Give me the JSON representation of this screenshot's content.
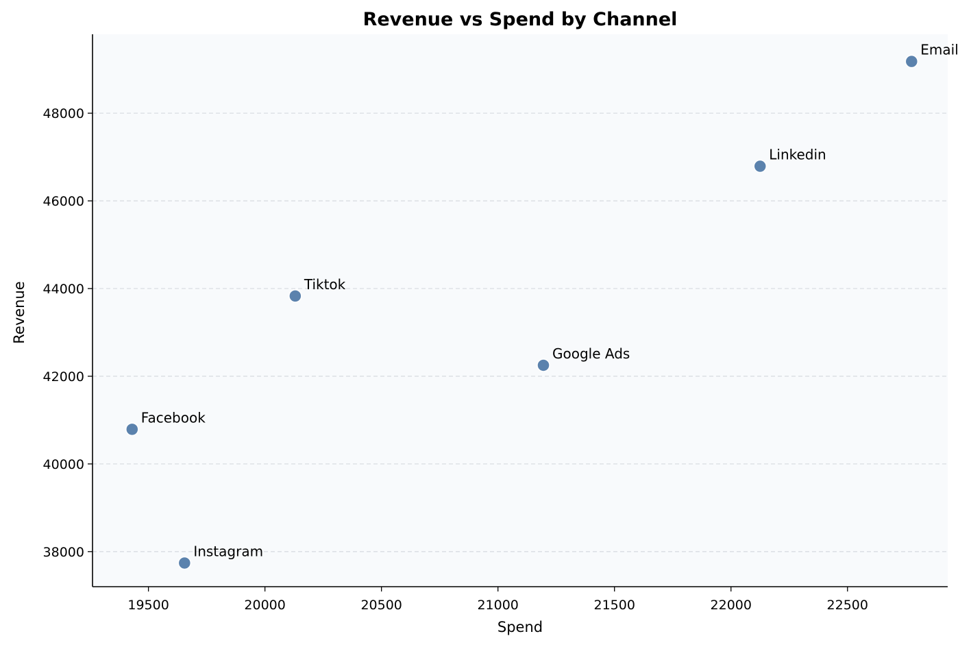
{
  "chart_data": {
    "type": "scatter",
    "title": "Revenue vs Spend by Channel",
    "xlabel": "Spend",
    "ylabel": "Revenue",
    "xlim": [
      19260,
      22930
    ],
    "ylim": [
      37200,
      49800
    ],
    "xticks": [
      19500,
      20000,
      20500,
      21000,
      21500,
      22000,
      22500
    ],
    "yticks": [
      38000,
      40000,
      42000,
      44000,
      46000,
      48000
    ],
    "grid": "y-dashed",
    "points": [
      {
        "label": "Facebook",
        "x": 19430,
        "y": 40790
      },
      {
        "label": "Instagram",
        "x": 19655,
        "y": 37740
      },
      {
        "label": "Tiktok",
        "x": 20130,
        "y": 43830
      },
      {
        "label": "Google Ads",
        "x": 21195,
        "y": 42250
      },
      {
        "label": "Linkedin",
        "x": 22125,
        "y": 46790
      },
      {
        "label": "Email",
        "x": 22775,
        "y": 49180
      }
    ],
    "colors": {
      "marker": "#5b82ad",
      "marker_edge": "#ffffff",
      "plot_bg": "#f8fafc",
      "grid": "#d9dde2",
      "axis": "#000000"
    }
  }
}
